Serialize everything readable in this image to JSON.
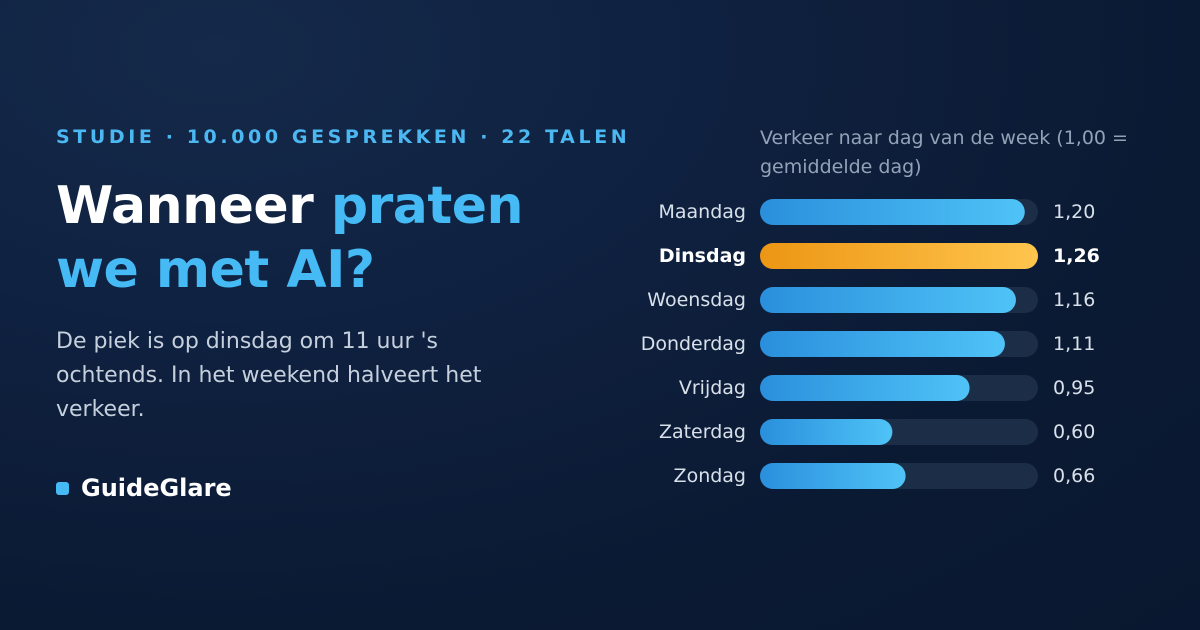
{
  "hero": {
    "eyebrow": "STUDIE · 10.000 GESPREKKEN · 22 TALEN",
    "title_plain": "Wanneer ",
    "title_highlight": "praten we met AI?",
    "lede": "De piek is op dinsdag om 11 uur 's ochtends. In het weekend halveert het verkeer.",
    "brand": "GuideGlare"
  },
  "colors": {
    "accent": "#45baf5",
    "highlight": "#f5a623",
    "track": "#1c2d48",
    "bar_start": "#2a8fdc",
    "bar_end": "#4fc3f7",
    "hl_start": "#ec9614",
    "hl_end": "#ffc54d"
  },
  "chart_data": {
    "type": "bar",
    "orientation": "horizontal",
    "title": "Verkeer naar dag van de week (1,00 = gemiddelde dag)",
    "categories": [
      "Maandag",
      "Dinsdag",
      "Woensdag",
      "Donderdag",
      "Vrijdag",
      "Zaterdag",
      "Zondag"
    ],
    "values": [
      1.2,
      1.26,
      1.16,
      1.11,
      0.95,
      0.6,
      0.66
    ],
    "value_labels": [
      "1,20",
      "1,26",
      "1,16",
      "1,11",
      "0,95",
      "0,60",
      "0,66"
    ],
    "highlight_category": "Dinsdag",
    "xlim": [
      0,
      1.26
    ],
    "grid": false,
    "legend": false
  }
}
